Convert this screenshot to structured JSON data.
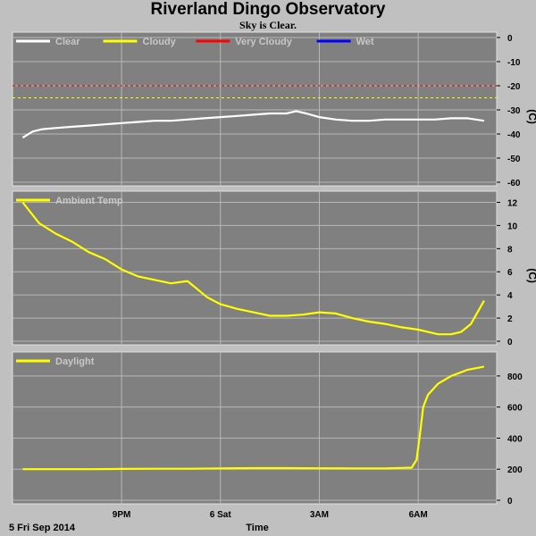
{
  "header": {
    "title": "Riverland Dingo Observatory",
    "subtitle": "Sky is Clear."
  },
  "footer": {
    "date_label": "5 Fri Sep 2014",
    "x_axis_title": "Time"
  },
  "colors": {
    "background": "#c0c0c0",
    "plot_bg": "#808080",
    "grid": "#b8b8b8",
    "clear": "#ffffff",
    "cloudy": "#ffff00",
    "very_cloudy": "#ff0000",
    "wet": "#0000ff"
  },
  "chart_data": [
    {
      "type": "line",
      "panel": "sky",
      "unit_label": "(C)",
      "ylim": [
        -60,
        0
      ],
      "yticks": [
        0,
        -10,
        -20,
        -30,
        -40,
        -50,
        -60
      ],
      "grid": true,
      "legend_placement": "top-left",
      "legend": [
        {
          "name": "Clear",
          "color": "#ffffff"
        },
        {
          "name": "Cloudy",
          "color": "#ffff00"
        },
        {
          "name": "Very Cloudy",
          "color": "#ff0000"
        },
        {
          "name": "Wet",
          "color": "#0000ff"
        }
      ],
      "thresholds": [
        {
          "value": -20,
          "color": "#ff0000",
          "style": "dashed"
        },
        {
          "value": -25,
          "color": "#ffff00",
          "style": "dashed"
        }
      ],
      "series": [
        {
          "name": "Clear",
          "color": "#ffffff",
          "x": [
            18.0,
            18.3,
            18.6,
            19.0,
            19.5,
            20.0,
            20.5,
            21.0,
            21.5,
            22.0,
            22.5,
            23.0,
            23.5,
            24.0,
            24.5,
            25.0,
            25.5,
            26.0,
            26.3,
            26.6,
            27.0,
            27.5,
            28.0,
            28.5,
            29.0,
            29.5,
            30.0,
            30.5,
            31.0,
            31.5,
            32.0
          ],
          "y": [
            -41.5,
            -39.0,
            -38.0,
            -37.5,
            -37.0,
            -36.5,
            -36.0,
            -35.5,
            -35.0,
            -34.5,
            -34.5,
            -34.0,
            -33.5,
            -33.0,
            -32.5,
            -32.0,
            -31.5,
            -31.5,
            -30.5,
            -31.5,
            -33.0,
            -34.0,
            -34.5,
            -34.5,
            -34.0,
            -34.0,
            -34.0,
            -34.0,
            -33.5,
            -33.5,
            -34.5
          ]
        }
      ]
    },
    {
      "type": "line",
      "panel": "ambient",
      "unit_label": "(C)",
      "ylim": [
        0,
        12.5
      ],
      "yticks": [
        0,
        2,
        4,
        6,
        8,
        10,
        12
      ],
      "grid": true,
      "legend_placement": "top-left",
      "legend": [
        {
          "name": "Ambient Temp",
          "color": "#ffff00"
        }
      ],
      "series": [
        {
          "name": "Ambient Temp",
          "color": "#ffff00",
          "x": [
            18.0,
            18.5,
            19.0,
            19.5,
            20.0,
            20.5,
            21.0,
            21.5,
            22.0,
            22.5,
            23.0,
            23.3,
            23.6,
            24.0,
            24.5,
            25.0,
            25.5,
            26.0,
            26.5,
            27.0,
            27.5,
            28.0,
            28.5,
            29.0,
            29.5,
            30.0,
            30.3,
            30.6,
            31.0,
            31.3,
            31.6,
            32.0
          ],
          "y": [
            12.0,
            10.2,
            9.3,
            8.6,
            7.7,
            7.1,
            6.2,
            5.6,
            5.3,
            5.0,
            5.2,
            4.5,
            3.8,
            3.2,
            2.8,
            2.5,
            2.2,
            2.2,
            2.3,
            2.5,
            2.4,
            2.0,
            1.7,
            1.5,
            1.2,
            1.0,
            0.8,
            0.6,
            0.6,
            0.8,
            1.5,
            3.5
          ]
        }
      ]
    },
    {
      "type": "line",
      "panel": "daylight",
      "unit_label": "",
      "ylim": [
        0,
        920
      ],
      "yticks": [
        0,
        200,
        400,
        600,
        800
      ],
      "grid": true,
      "legend_placement": "top-left",
      "legend": [
        {
          "name": "Daylight",
          "color": "#ffff00"
        }
      ],
      "x_tick_labels": [
        {
          "x": 21,
          "label": "9PM"
        },
        {
          "x": 24,
          "label": "6 Sat"
        },
        {
          "x": 27,
          "label": "3AM"
        },
        {
          "x": 30,
          "label": "6AM"
        }
      ],
      "series": [
        {
          "name": "Daylight",
          "color": "#ffff00",
          "x": [
            18.0,
            19.0,
            20.0,
            21.0,
            22.0,
            23.0,
            24.0,
            25.0,
            26.0,
            27.0,
            28.0,
            29.0,
            29.8,
            29.95,
            30.05,
            30.15,
            30.3,
            30.6,
            31.0,
            31.5,
            32.0
          ],
          "y": [
            200,
            200,
            200,
            202,
            203,
            203,
            205,
            207,
            207,
            206,
            205,
            205,
            210,
            260,
            420,
            600,
            680,
            750,
            800,
            840,
            860
          ]
        }
      ]
    }
  ]
}
